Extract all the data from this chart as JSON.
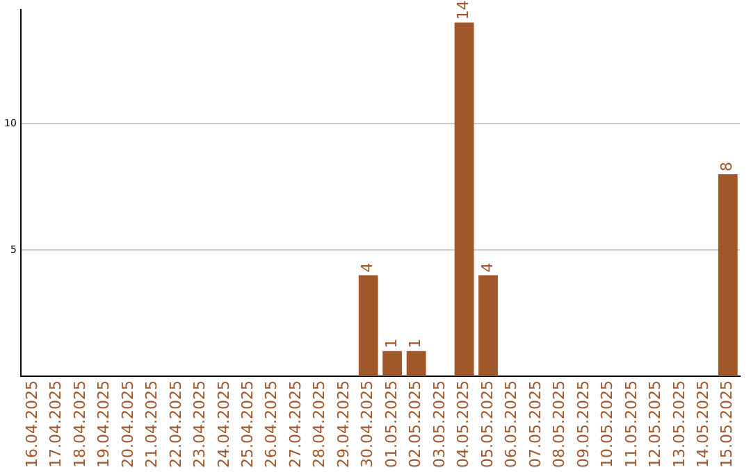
{
  "chart_data": {
    "type": "bar",
    "categories": [
      "16.04.2025",
      "17.04.2025",
      "18.04.2025",
      "19.04.2025",
      "20.04.2025",
      "21.04.2025",
      "22.04.2025",
      "23.04.2025",
      "24.04.2025",
      "25.04.2025",
      "26.04.2025",
      "27.04.2025",
      "28.04.2025",
      "29.04.2025",
      "30.04.2025",
      "01.05.2025",
      "02.05.2025",
      "03.05.2025",
      "04.05.2025",
      "05.05.2025",
      "06.05.2025",
      "07.05.2025",
      "08.05.2025",
      "09.05.2025",
      "10.05.2025",
      "11.05.2025",
      "12.05.2025",
      "13.05.2025",
      "14.05.2025",
      "15.05.2025"
    ],
    "values": [
      0,
      0,
      0,
      0,
      0,
      0,
      0,
      0,
      0,
      0,
      0,
      0,
      0,
      0,
      4,
      1,
      1,
      0,
      14,
      4,
      0,
      0,
      0,
      0,
      0,
      0,
      0,
      0,
      0,
      8
    ],
    "value_labels": [
      null,
      null,
      null,
      null,
      null,
      null,
      null,
      null,
      null,
      null,
      null,
      null,
      null,
      null,
      "4",
      "1",
      "1",
      null,
      "14",
      "4",
      null,
      null,
      null,
      null,
      null,
      null,
      null,
      null,
      null,
      "8"
    ],
    "color": "#a0572a",
    "ylim": [
      0,
      14.5
    ],
    "yticks": [
      5,
      10
    ],
    "grid": "y",
    "legend": false
  }
}
